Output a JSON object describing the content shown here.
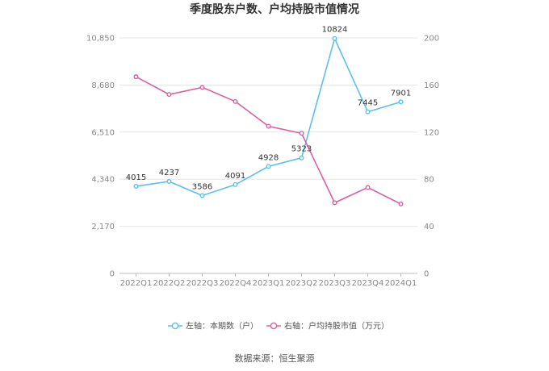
{
  "chart_data": {
    "type": "line",
    "title": "季度股东户数、户均持股市值情况",
    "categories": [
      "2022Q1",
      "2022Q2",
      "2022Q3",
      "2022Q4",
      "2023Q1",
      "2023Q2",
      "2023Q3",
      "2023Q4",
      "2024Q1"
    ],
    "left_axis": {
      "ylim": [
        0,
        10850
      ],
      "ticks": [
        0,
        2170,
        4340,
        6510,
        8680,
        10850
      ],
      "tick_labels": [
        "0",
        "2,170",
        "4,340",
        "6,510",
        "8,680",
        "10,850"
      ]
    },
    "right_axis": {
      "ylim": [
        0,
        200
      ],
      "ticks": [
        0,
        40,
        80,
        120,
        160,
        200
      ],
      "tick_labels": [
        "0",
        "40",
        "80",
        "120",
        "160",
        "200"
      ]
    },
    "series": [
      {
        "name": "左轴：本期数（户）",
        "axis": "left",
        "color": "#5bc0eb",
        "values": [
          4015,
          4237,
          3586,
          4091,
          4928,
          5323,
          10824,
          7445,
          7901
        ],
        "labels": [
          "4015",
          "4237",
          "3586",
          "4091",
          "4928",
          "5323",
          "10824",
          "7445",
          "7901"
        ]
      },
      {
        "name": "右轴：户均持股市值（万元）",
        "axis": "right",
        "color": "#d9629f",
        "values": [
          167,
          152,
          158,
          146,
          125,
          119,
          60,
          73,
          59
        ]
      }
    ],
    "legend_position": "bottom-center",
    "grid": true
  },
  "source": "数据来源：恒生聚源"
}
